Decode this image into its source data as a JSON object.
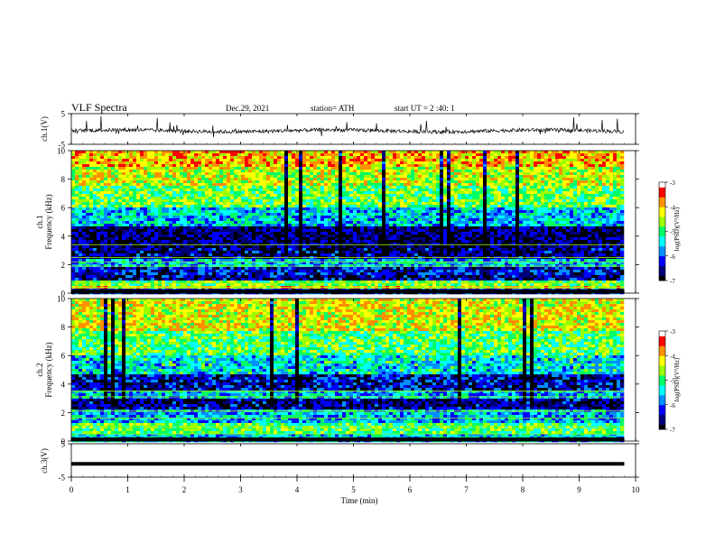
{
  "header": {
    "title": "VLF  Spectra",
    "date": "Dec.29,  2021",
    "station": "station= ATH",
    "start_ut": "start  UT  =    2  :40: 1"
  },
  "chart_data": [
    {
      "type": "line",
      "panel": "ch1-waveform",
      "ylabel": "ch.1(V)",
      "yticks": [
        "5",
        "-5"
      ],
      "ylim": [
        -5,
        5
      ],
      "x_range": [
        0,
        9.8
      ],
      "baseline_value": -0.6,
      "noise_amplitude": 0.6,
      "color": "#000000"
    },
    {
      "type": "heatmap",
      "panel": "ch1-spectrogram",
      "ylabel": "ch.1\nFrequency  (kHz)",
      "ylabel_line1": "ch.1",
      "ylabel_line2": "Frequency  (kHz)",
      "yticks": [
        "0",
        "2",
        "4",
        "6",
        "8",
        "10"
      ],
      "ylim": [
        0,
        10
      ],
      "x_range": [
        0,
        9.8
      ],
      "colorbar": {
        "label": "log(PSD)(V²/Hz)",
        "ticks": [
          "-3",
          "-4",
          "-5",
          "-6",
          "-7"
        ],
        "range": [
          -7,
          -3
        ]
      },
      "bands_khz_logpsd": [
        [
          0,
          0.3,
          -6.3
        ],
        [
          0.3,
          0.5,
          -4.2
        ],
        [
          0.5,
          0.9,
          -4.8
        ],
        [
          0.9,
          1.3,
          -6.5
        ],
        [
          1.3,
          1.9,
          -6.3
        ],
        [
          1.9,
          2.5,
          -5.6
        ],
        [
          2.5,
          3.2,
          -6.6
        ],
        [
          3.2,
          4.6,
          -6.7
        ],
        [
          4.6,
          6.0,
          -5.5
        ],
        [
          6.0,
          7.5,
          -4.8
        ],
        [
          7.5,
          8.8,
          -4.4
        ],
        [
          8.8,
          10.0,
          -4.0
        ]
      ],
      "lines_khz": [
        0.4,
        0.7,
        1.9,
        2.2,
        2.5,
        3.4
      ]
    },
    {
      "type": "heatmap",
      "panel": "ch2-spectrogram",
      "ylabel": "ch.2\nFrequency  (kHz)",
      "ylabel_line1": "ch.2",
      "ylabel_line2": "Frequency  (kHz)",
      "yticks": [
        "0",
        "2",
        "4",
        "6",
        "8",
        "10"
      ],
      "ylim": [
        0,
        10
      ],
      "x_range": [
        0,
        9.8
      ],
      "colorbar": {
        "label": "log(PSD)(V²/Hz)",
        "ticks": [
          "-3",
          "-4",
          "-5",
          "-6",
          "-7"
        ],
        "range": [
          -7,
          -3
        ]
      },
      "bands_khz_logpsd": [
        [
          0,
          0.5,
          -5.5
        ],
        [
          0.5,
          1.2,
          -4.9
        ],
        [
          1.2,
          2.2,
          -5.6
        ],
        [
          2.2,
          3.0,
          -6.6
        ],
        [
          3.0,
          3.6,
          -5.6
        ],
        [
          3.6,
          4.6,
          -6.4
        ],
        [
          4.6,
          6.0,
          -5.4
        ],
        [
          6.0,
          7.8,
          -4.9
        ],
        [
          7.8,
          10.0,
          -4.3
        ]
      ],
      "lines_khz": [
        0.5,
        1.0,
        1.6,
        2.1,
        3.1,
        3.5
      ]
    },
    {
      "type": "line",
      "panel": "ch3-waveform",
      "ylabel": "ch.3(V)",
      "yticks": [
        "5",
        "-5"
      ],
      "ylim": [
        -5,
        5
      ],
      "x_range": [
        0,
        9.8
      ],
      "baseline_value": -1.0,
      "noise_amplitude": 0.0,
      "color": "#000000"
    }
  ],
  "xaxis": {
    "label": "Time  (min)",
    "ticks": [
      "0",
      "1",
      "2",
      "3",
      "4",
      "5",
      "6",
      "7",
      "8",
      "9",
      "10"
    ],
    "range": [
      0,
      10
    ]
  },
  "colormap": [
    "#000000",
    "#00007a",
    "#0000ff",
    "#0090ff",
    "#00ffff",
    "#00ff66",
    "#9cff00",
    "#ffff00",
    "#ff9000",
    "#ff0000",
    "#ffffff"
  ]
}
